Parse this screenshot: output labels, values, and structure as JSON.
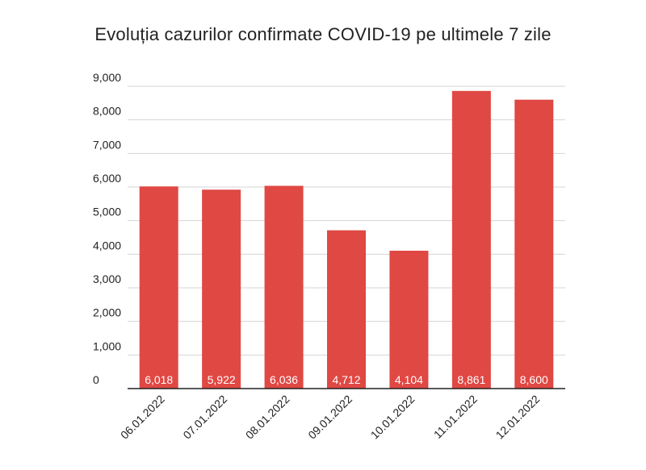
{
  "chart_data": {
    "type": "bar",
    "title": "Evoluția cazurilor confirmate COVID-19 pe ultimele 7 zile",
    "categories": [
      "06.01.2022",
      "07.01.2022",
      "08.01.2022",
      "09.01.2022",
      "10.01.2022",
      "11.01.2022",
      "12.01.2022"
    ],
    "values": [
      6018,
      5922,
      6036,
      4712,
      4104,
      8861,
      8600
    ],
    "data_labels": [
      "6,018",
      "5,922",
      "6,036",
      "4,712",
      "4,104",
      "8,861",
      "8,600"
    ],
    "y_ticks": [
      0,
      1000,
      2000,
      3000,
      4000,
      5000,
      6000,
      7000,
      8000,
      9000
    ],
    "y_tick_labels": [
      "0",
      "1,000",
      "2,000",
      "3,000",
      "4,000",
      "5,000",
      "6,000",
      "7,000",
      "8,000",
      "9,000"
    ],
    "ylim": [
      0,
      9000
    ],
    "xlabel": "",
    "ylabel": "",
    "grid": true,
    "bar_color": "#e04844",
    "label_color": "#ffffff"
  }
}
